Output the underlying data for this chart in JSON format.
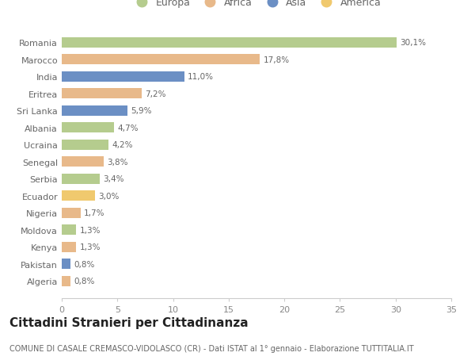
{
  "categories": [
    "Romania",
    "Marocco",
    "India",
    "Eritrea",
    "Sri Lanka",
    "Albania",
    "Ucraina",
    "Senegal",
    "Serbia",
    "Ecuador",
    "Nigeria",
    "Moldova",
    "Kenya",
    "Pakistan",
    "Algeria"
  ],
  "values": [
    30.1,
    17.8,
    11.0,
    7.2,
    5.9,
    4.7,
    4.2,
    3.8,
    3.4,
    3.0,
    1.7,
    1.3,
    1.3,
    0.8,
    0.8
  ],
  "labels": [
    "30,1%",
    "17,8%",
    "11,0%",
    "7,2%",
    "5,9%",
    "4,7%",
    "4,2%",
    "3,8%",
    "3,4%",
    "3,0%",
    "1,7%",
    "1,3%",
    "1,3%",
    "0,8%",
    "0,8%"
  ],
  "continents": [
    "Europa",
    "Africa",
    "Asia",
    "Africa",
    "Asia",
    "Europa",
    "Europa",
    "Africa",
    "Europa",
    "America",
    "Africa",
    "Europa",
    "Africa",
    "Asia",
    "Africa"
  ],
  "colors": {
    "Europa": "#b5cc8e",
    "Africa": "#e8b98a",
    "Asia": "#6b8fc4",
    "America": "#f0c96e"
  },
  "legend_order": [
    "Europa",
    "Africa",
    "Asia",
    "America"
  ],
  "xlim": [
    0,
    35
  ],
  "xticks": [
    0,
    5,
    10,
    15,
    20,
    25,
    30,
    35
  ],
  "title": "Cittadini Stranieri per Cittadinanza",
  "subtitle": "COMUNE DI CASALE CREMASCO-VIDOLASCO (CR) - Dati ISTAT al 1° gennaio - Elaborazione TUTTITALIA.IT",
  "background_color": "#ffffff",
  "bar_height": 0.6,
  "title_fontsize": 11,
  "subtitle_fontsize": 7,
  "label_fontsize": 7.5,
  "ytick_fontsize": 8,
  "xtick_fontsize": 8,
  "legend_fontsize": 9
}
